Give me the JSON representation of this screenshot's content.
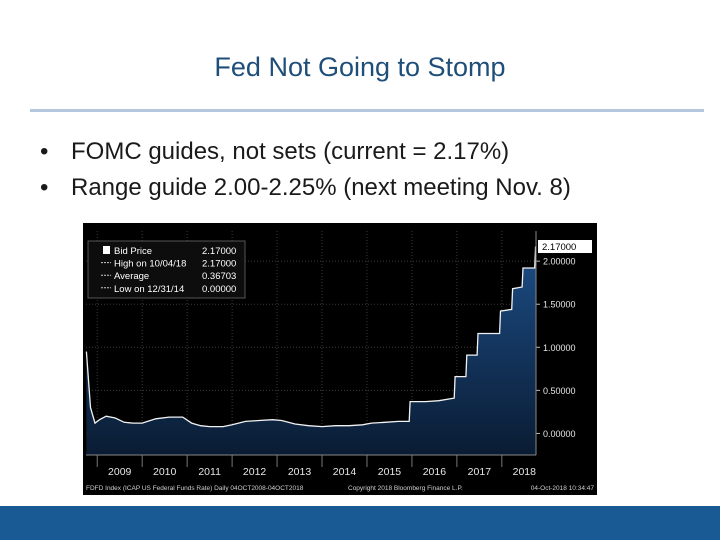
{
  "slide": {
    "title": "Fed Not Going to Stomp",
    "bullets": [
      "FOMC guides, not sets (current = 2.17%)",
      "Range guide 2.00-2.25% (next meeting Nov. 8)"
    ]
  },
  "chart_data": {
    "type": "area",
    "title": "",
    "xlabel": "",
    "ylabel": "",
    "xlim": [
      2008.75,
      2018.76
    ],
    "ylim": [
      -0.25,
      2.35
    ],
    "grid": true,
    "x_tick_labels": [
      "2009",
      "2010",
      "2011",
      "2012",
      "2013",
      "2014",
      "2015",
      "2016",
      "2017",
      "2018"
    ],
    "y_tick_labels": [
      "2.00000",
      "1.50000",
      "1.00000",
      "0.50000",
      "0.00000"
    ],
    "y_tick_values": [
      2.0,
      1.5,
      1.0,
      0.5,
      0.0
    ],
    "current_value_label": "2.17000",
    "current_value": 2.17,
    "legend": {
      "placement": "top-left",
      "rows": [
        {
          "label": "Bid Price",
          "value": "2.17000"
        },
        {
          "label": "High on 10/04/18",
          "value": "2.17000"
        },
        {
          "label": "Average",
          "value": "0.36703"
        },
        {
          "label": "Low on 12/31/14",
          "value": "0.00000"
        }
      ]
    },
    "footer_left": "FDFD Index (ICAP US Federal Funds Rate)  Daily 04OCT2008-04OCT2018",
    "footer_mid": "Copyright 2018 Bloomberg Finance L.P.",
    "footer_right": "04-Oct-2018 10:34:47",
    "series": [
      {
        "x": [
          2008.76,
          2008.85,
          2008.95,
          2009.05,
          2009.2,
          2009.4,
          2009.6,
          2009.8,
          2010.0,
          2010.3,
          2010.6,
          2010.9,
          2011.1,
          2011.3,
          2011.5,
          2011.8,
          2012.0,
          2012.3,
          2012.6,
          2012.9,
          2013.1,
          2013.4,
          2013.7,
          2014.0,
          2014.3,
          2014.6,
          2014.9,
          2015.1,
          2015.4,
          2015.7,
          2015.94,
          2015.96,
          2016.3,
          2016.6,
          2016.94,
          2016.96,
          2017.2,
          2017.22,
          2017.45,
          2017.47,
          2017.95,
          2017.97,
          2018.22,
          2018.24,
          2018.45,
          2018.47,
          2018.73,
          2018.75
        ],
        "values": [
          0.95,
          0.3,
          0.12,
          0.16,
          0.2,
          0.18,
          0.13,
          0.12,
          0.12,
          0.17,
          0.19,
          0.19,
          0.12,
          0.09,
          0.08,
          0.08,
          0.1,
          0.14,
          0.15,
          0.16,
          0.15,
          0.11,
          0.09,
          0.08,
          0.09,
          0.09,
          0.1,
          0.12,
          0.13,
          0.14,
          0.14,
          0.37,
          0.37,
          0.38,
          0.41,
          0.66,
          0.66,
          0.91,
          0.91,
          1.16,
          1.16,
          1.42,
          1.44,
          1.68,
          1.7,
          1.92,
          1.92,
          2.17
        ]
      }
    ]
  }
}
